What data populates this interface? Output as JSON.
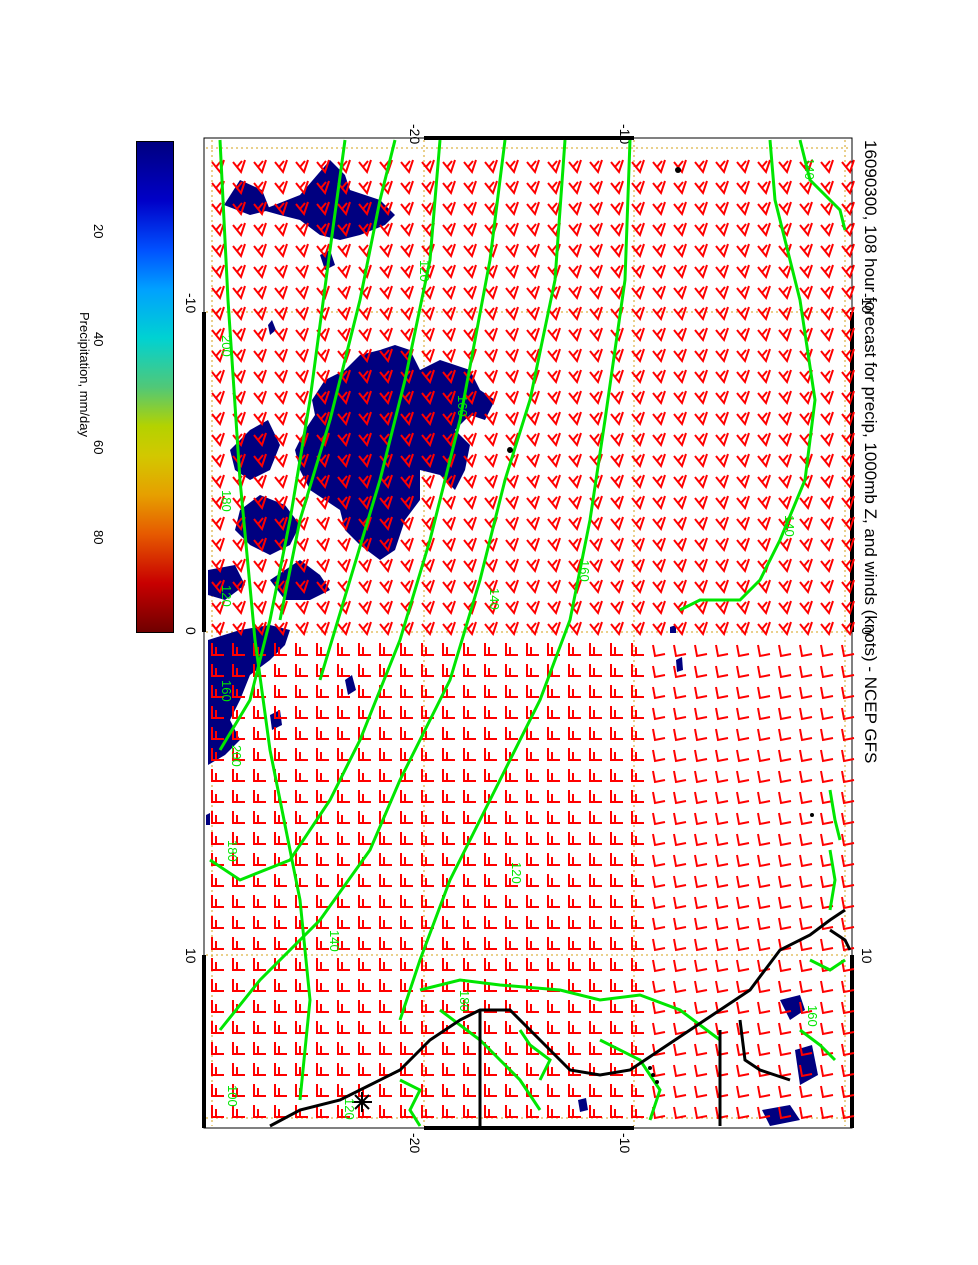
{
  "title": "16090300, 108 hour forecast for precip, 1000mb Z, and winds (knots) - NCEP GFS",
  "colorbar": {
    "label": "Precipitation, mm/day",
    "ticks": [
      "20",
      "40",
      "60",
      "80"
    ]
  },
  "axes": {
    "top_ticks": [
      "-20",
      "-10"
    ],
    "bottom_ticks": [
      "-20",
      "-10"
    ],
    "left_ticks": [
      "-10",
      "0",
      "10"
    ],
    "right_ticks": [
      "-10",
      "0",
      "10"
    ]
  },
  "contour_labels": [
    "140",
    "120",
    "200",
    "160",
    "180",
    "140",
    "160",
    "120",
    "140",
    "160",
    "180",
    "200",
    "120",
    "140",
    "180",
    "160",
    "100",
    "120"
  ],
  "colors": {
    "barb": "#ff0000",
    "contour": "#00e600",
    "precip": "#000080",
    "coast": "#000000",
    "grid": "#d4a017"
  }
}
